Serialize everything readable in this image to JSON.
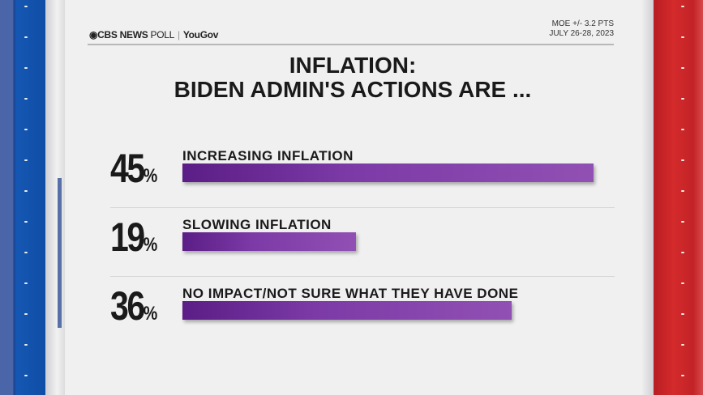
{
  "header": {
    "logo_cbs": "CBS NEWS",
    "logo_poll": "POLL",
    "logo_sep": "|",
    "logo_partner": "YouGov",
    "moe": "MOE +/- 3.2 PTS",
    "dates": "JULY 26-28, 2023"
  },
  "title_line1": "INFLATION:",
  "title_line2": "BIDEN ADMIN'S ACTIONS ARE ...",
  "colors": {
    "bar": "#7b3aa6",
    "left_stripe": "#1557b3",
    "right_stripe": "#d42a2c"
  },
  "chart_data": {
    "type": "bar",
    "orientation": "horizontal",
    "categories": [
      "INCREASING INFLATION",
      "SLOWING INFLATION",
      "NO IMPACT/NOT SURE WHAT THEY HAVE DONE"
    ],
    "values": [
      45,
      19,
      36
    ],
    "value_labels": [
      "45",
      "19",
      "36"
    ],
    "unit": "%"
  }
}
